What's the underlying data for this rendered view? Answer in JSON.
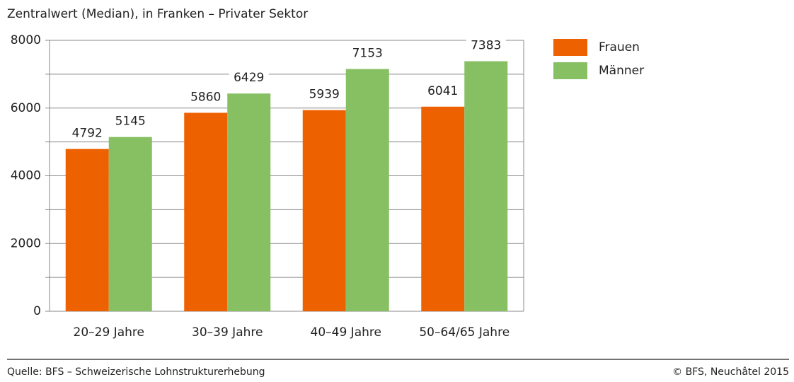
{
  "chart_data": {
    "type": "bar",
    "title": "Zentralwert (Median), in Franken – Privater Sektor",
    "categories": [
      "20–29 Jahre",
      "30–39 Jahre",
      "40–49 Jahre",
      "50–64/65 Jahre"
    ],
    "series": [
      {
        "name": "Frauen",
        "color": "#ee6100",
        "values": [
          4792,
          5860,
          5939,
          6041
        ]
      },
      {
        "name": "Männer",
        "color": "#86c063",
        "values": [
          5145,
          6429,
          7153,
          7383
        ]
      }
    ],
    "ylim": [
      0,
      8000
    ],
    "yticks": [
      0,
      2000,
      4000,
      6000,
      8000
    ],
    "minor_yticks": [
      1000,
      3000,
      5000,
      7000
    ],
    "grid": true,
    "legend": "right",
    "source": "Quelle: BFS – Schweizerische Lohnstrukturerhebung",
    "copyright": "© BFS, Neuchâtel 2015"
  }
}
